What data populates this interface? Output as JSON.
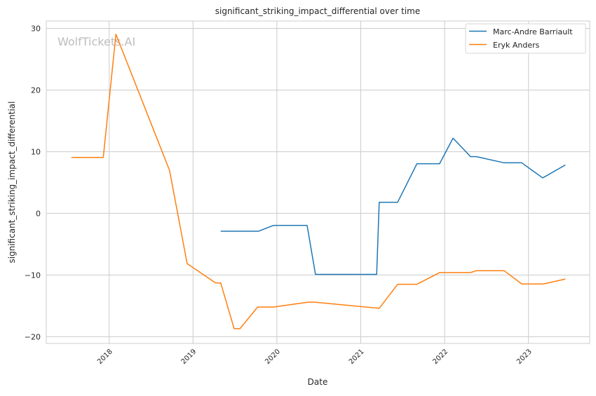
{
  "chart_data": {
    "type": "line",
    "title": "significant_striking_impact_differential over time",
    "xlabel": "Date",
    "ylabel": "significant_striking_impact_differential",
    "xlim": [
      2017.25,
      2023.73
    ],
    "ylim": [
      -21.1,
      31.2
    ],
    "x_ticks": [
      2018,
      2019,
      2020,
      2021,
      2022,
      2023
    ],
    "x_tick_labels": [
      "2018",
      "2019",
      "2020",
      "2021",
      "2022",
      "2023"
    ],
    "y_ticks": [
      -20,
      -10,
      0,
      10,
      20,
      30
    ],
    "y_tick_labels": [
      "−20",
      "−10",
      "0",
      "10",
      "20",
      "30"
    ],
    "grid": true,
    "legend_position": "top-right",
    "watermark": "WolfTickets.AI",
    "series": [
      {
        "name": "Marc-Andre Barriault",
        "color": "#1f77b4",
        "x": [
          2019.33,
          2019.78,
          2019.96,
          2020.36,
          2020.46,
          2021.19,
          2021.22,
          2021.44,
          2021.67,
          2021.94,
          2022.1,
          2022.31,
          2022.38,
          2022.71,
          2022.92,
          2023.17,
          2023.44
        ],
        "y": [
          -2.9,
          -2.9,
          -1.95,
          -1.95,
          -9.9,
          -9.9,
          1.8,
          1.8,
          8.05,
          8.05,
          12.2,
          9.2,
          9.2,
          8.2,
          8.2,
          5.75,
          7.85
        ]
      },
      {
        "name": "Eryk Anders",
        "color": "#ff7f0e",
        "x": [
          2017.55,
          2017.93,
          2018.08,
          2018.72,
          2018.93,
          2019.27,
          2019.33,
          2019.49,
          2019.56,
          2019.77,
          2019.96,
          2020.37,
          2020.45,
          2021.22,
          2021.44,
          2021.67,
          2021.94,
          2022.31,
          2022.38,
          2022.71,
          2022.92,
          2023.18,
          2023.44
        ],
        "y": [
          9.07,
          9.07,
          29.05,
          6.97,
          -8.15,
          -11.3,
          -11.3,
          -18.7,
          -18.7,
          -15.2,
          -15.2,
          -14.4,
          -14.4,
          -15.4,
          -11.5,
          -11.5,
          -9.6,
          -9.6,
          -9.3,
          -9.3,
          -11.45,
          -11.45,
          -10.65
        ]
      }
    ]
  }
}
